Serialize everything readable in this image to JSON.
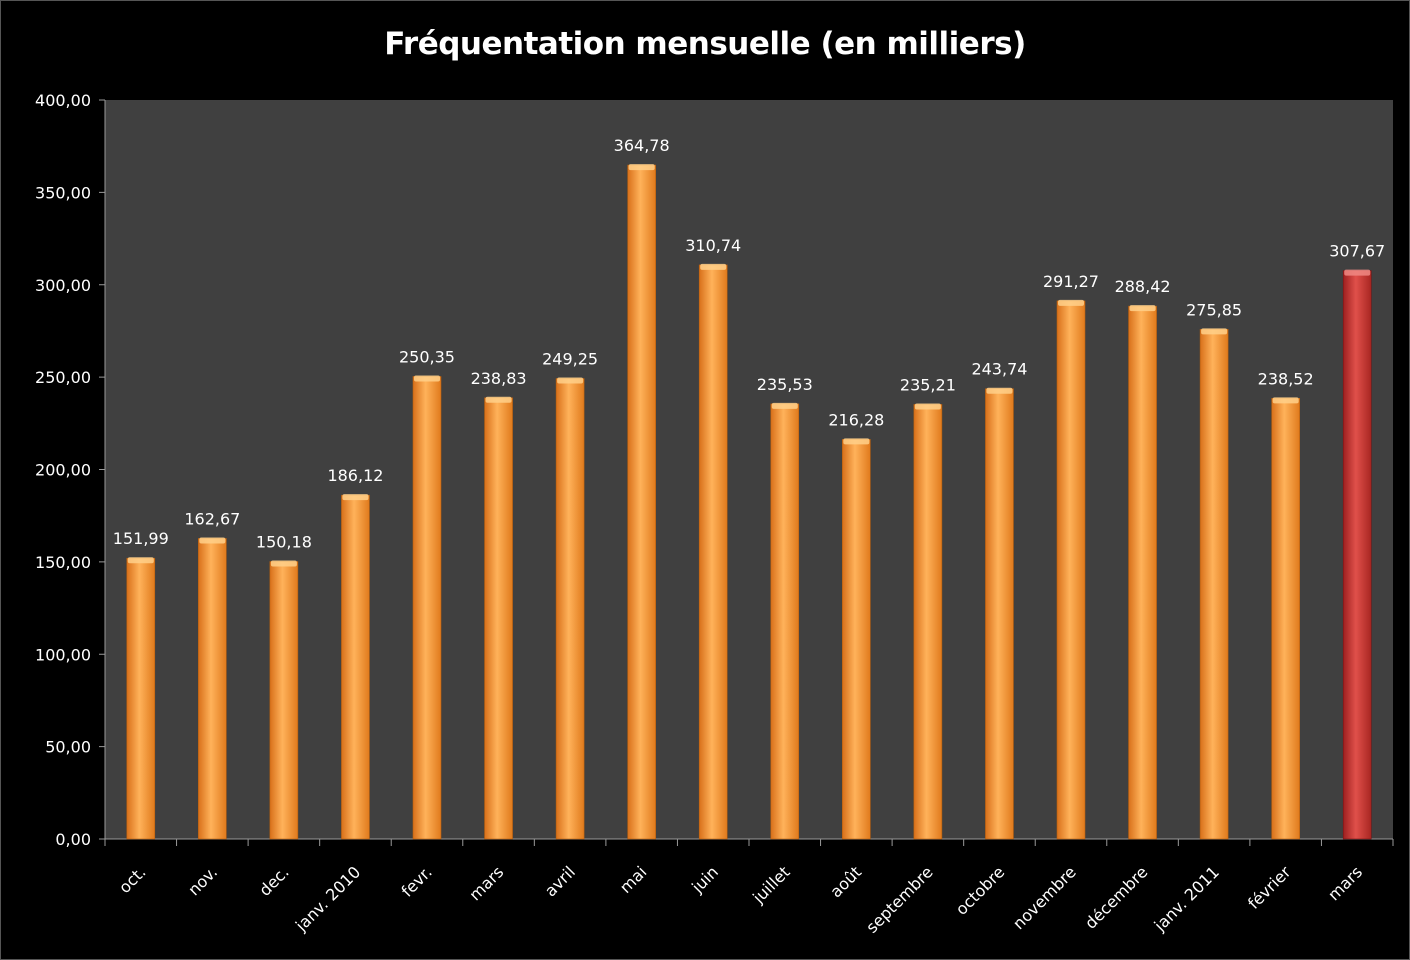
{
  "chart_data": {
    "type": "bar",
    "title": "Fréquentation mensuelle (en milliers)",
    "categories": [
      "oct.",
      "nov.",
      "dec.",
      "janv. 2010",
      "fevr.",
      "mars",
      "avril",
      "mai",
      "juin",
      "juillet",
      "août",
      "septembre",
      "octobre",
      "novembre",
      "décembre",
      "janv. 2011",
      "février",
      "mars"
    ],
    "values": [
      151.99,
      162.67,
      150.18,
      186.12,
      250.35,
      238.83,
      249.25,
      364.78,
      310.74,
      235.53,
      216.28,
      235.21,
      243.74,
      291.27,
      288.42,
      275.85,
      238.52,
      307.67
    ],
    "value_labels": [
      "151,99",
      "162,67",
      "150,18",
      "186,12",
      "250,35",
      "238,83",
      "249,25",
      "364,78",
      "310,74",
      "235,53",
      "216,28",
      "235,21",
      "243,74",
      "291,27",
      "288,42",
      "275,85",
      "238,52",
      "307,67"
    ],
    "highlighted_index": 17,
    "ylim": [
      0,
      400
    ],
    "yticks": [
      0,
      50,
      100,
      150,
      200,
      250,
      300,
      350,
      400
    ],
    "ytick_labels": [
      "0,00",
      "50,00",
      "100,00",
      "150,00",
      "200,00",
      "250,00",
      "300,00",
      "350,00",
      "400,00"
    ],
    "xlabel": "",
    "ylabel": "",
    "grid": false,
    "legend": "none",
    "colors": {
      "background": "#000000",
      "plot_area": "#404040",
      "bar": "#f7931e",
      "bar_highlight": "#c8302a",
      "text": "#ffffff"
    }
  }
}
